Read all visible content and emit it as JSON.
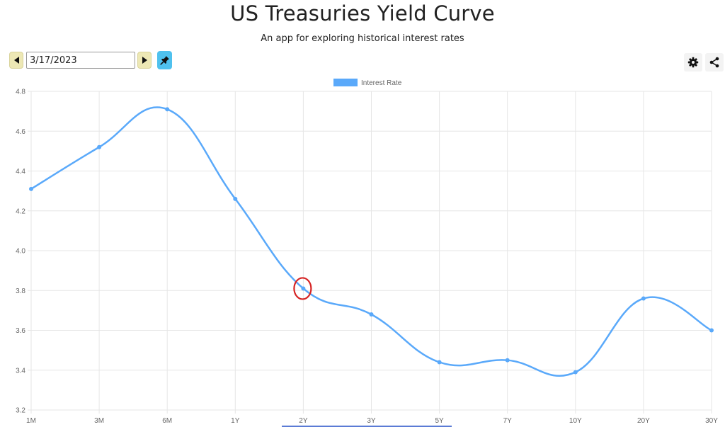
{
  "header": {
    "title": "US Treasuries Yield Curve",
    "subtitle": "An app for exploring historical interest rates"
  },
  "toolbar": {
    "prev_icon": "triangle-left-icon",
    "next_icon": "triangle-right-icon",
    "date_value": "3/17/2023",
    "pin_icon": "pin-icon",
    "settings_icon": "gear-icon",
    "share_icon": "share-icon",
    "nav_color": "#ede8b5",
    "pin_color": "#4fc1ee"
  },
  "chart_data": {
    "type": "line",
    "categories": [
      "1M",
      "3M",
      "6M",
      "1Y",
      "2Y",
      "3Y",
      "5Y",
      "7Y",
      "10Y",
      "20Y",
      "30Y"
    ],
    "series": [
      {
        "name": "Interest Rate",
        "values": [
          4.31,
          4.52,
          4.71,
          4.26,
          3.81,
          3.68,
          3.44,
          3.45,
          3.39,
          3.76,
          3.6
        ],
        "color": "#5aa9fa"
      }
    ],
    "ylim": [
      3.2,
      4.8
    ],
    "yticks": [
      "4.8",
      "4.6",
      "4.4",
      "4.2",
      "4.0",
      "3.8",
      "3.6",
      "3.4",
      "3.2"
    ],
    "grid": true,
    "legend": "top-center",
    "highlight": {
      "category": "2Y",
      "color": "#d62424"
    }
  }
}
